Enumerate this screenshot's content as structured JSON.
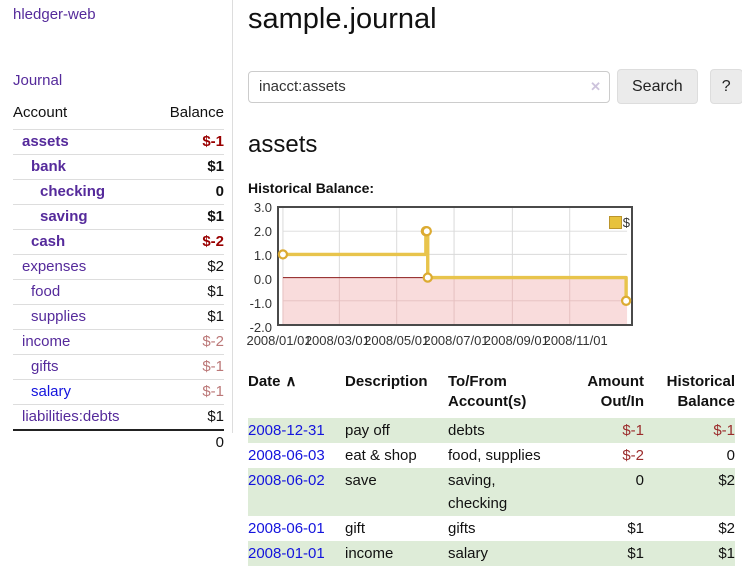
{
  "colors": {
    "link_purple": "#552a9b",
    "link_blue": "#1414dd",
    "neg_strong": "#990000",
    "neg_soft": "#bb7777",
    "neg_table": "#9b2c2c",
    "row_green": "#deecd8"
  },
  "sidebar": {
    "app_title": "hledger-web",
    "journal_link": "Journal",
    "accounts_header": {
      "account": "Account",
      "balance": "Balance"
    },
    "accounts": [
      {
        "name": "assets",
        "indent": 1,
        "in_scope": true,
        "balance": "$-1",
        "link_color": "purple"
      },
      {
        "name": "bank",
        "indent": 2,
        "in_scope": true,
        "balance": "$1",
        "link_color": "purple"
      },
      {
        "name": "checking",
        "indent": 3,
        "in_scope": true,
        "balance": "0",
        "link_color": "purple"
      },
      {
        "name": "saving",
        "indent": 3,
        "in_scope": true,
        "balance": "$1",
        "link_color": "purple"
      },
      {
        "name": "cash",
        "indent": 2,
        "in_scope": true,
        "balance": "$-2",
        "link_color": "purple"
      },
      {
        "name": "expenses",
        "indent": 1,
        "in_scope": false,
        "balance": "$2",
        "link_color": "purple"
      },
      {
        "name": "food",
        "indent": 2,
        "in_scope": false,
        "balance": "$1",
        "link_color": "purple"
      },
      {
        "name": "supplies",
        "indent": 2,
        "in_scope": false,
        "balance": "$1",
        "link_color": "purple"
      },
      {
        "name": "income",
        "indent": 1,
        "in_scope": false,
        "balance": "$-2",
        "link_color": "purple"
      },
      {
        "name": "gifts",
        "indent": 2,
        "in_scope": false,
        "balance": "$-1",
        "link_color": "purple"
      },
      {
        "name": "salary",
        "indent": 2,
        "in_scope": false,
        "balance": "$-1",
        "link_color": "blue"
      },
      {
        "name": "liabilities:debts",
        "indent": 1,
        "in_scope": false,
        "balance": "$1",
        "link_color": "purple"
      }
    ],
    "total": "0"
  },
  "main": {
    "title": "sample.journal",
    "search": {
      "query": "inacct:assets",
      "clear_icon": "✕",
      "button_label": "Search",
      "help_label": "?"
    },
    "account_heading": "assets",
    "chart_label": "Historical Balance:"
  },
  "register": {
    "columns": [
      {
        "label": "Date",
        "sort_icon": "∧",
        "align": "left",
        "sortable": true
      },
      {
        "label": "Description",
        "align": "left",
        "sortable": false
      },
      {
        "label": "To/From Account(s)",
        "align": "left",
        "sortable": false
      },
      {
        "label": "Amount Out/In",
        "align": "right",
        "sortable": false
      },
      {
        "label": "Historical Balance",
        "align": "right",
        "sortable": false
      }
    ],
    "rows": [
      {
        "date": "2008-12-31",
        "description": "pay off",
        "to_from": "debts",
        "amount": "$-1",
        "balance": "$-1"
      },
      {
        "date": "2008-06-03",
        "description": "eat & shop",
        "to_from": "food, supplies",
        "amount": "$-2",
        "balance": "0"
      },
      {
        "date": "2008-06-02",
        "description": "save",
        "to_from": "saving,\nchecking",
        "amount": "0",
        "balance": "$2"
      },
      {
        "date": "2008-06-01",
        "description": "gift",
        "to_from": "gifts",
        "amount": "$1",
        "balance": "$2"
      },
      {
        "date": "2008-01-01",
        "description": "income",
        "to_from": "salary",
        "amount": "$1",
        "balance": "$1"
      }
    ]
  },
  "chart_data": {
    "type": "line",
    "title": "Historical Balance:",
    "legend": "$",
    "step": true,
    "series": [
      {
        "name": "$",
        "points": [
          {
            "date": "2008-01-01",
            "value": 1
          },
          {
            "date": "2008-06-01",
            "value": 2
          },
          {
            "date": "2008-06-02",
            "value": 2
          },
          {
            "date": "2008-06-03",
            "value": 0
          },
          {
            "date": "2008-12-31",
            "value": -1
          }
        ]
      }
    ],
    "xlim": [
      "2008-01-01",
      "2009-01-01"
    ],
    "ylim": [
      -2,
      3
    ],
    "x_ticks": [
      "2008/01/01",
      "2008/03/01",
      "2008/05/01",
      "2008/07/01",
      "2008/09/01",
      "2008/11/01"
    ],
    "y_ticks": [
      "3.0",
      "2.0",
      "1.0",
      "0.0",
      "-1.0",
      "-2.0"
    ],
    "grid": true,
    "legend_position": "top-right",
    "line_color": "#e8c44c",
    "marker_color": "#dcab32",
    "negative_region_color": "#f9dcdc",
    "zero_line_color": "#8b1a1a",
    "grid_color": "#d9d9d9",
    "grid_color_negative": "#e5c0c0",
    "border_color": "#4a4a4a"
  }
}
